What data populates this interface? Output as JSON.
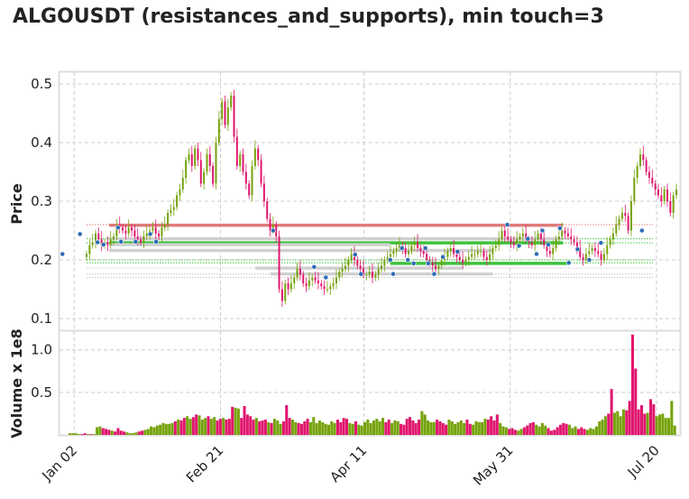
{
  "title": "ALGOUSDT (resistances_and_supports), min touch=3",
  "chart_data": {
    "type": "candlestick",
    "title": "ALGOUSDT (resistances_and_supports), min touch=3",
    "price_panel": {
      "ylabel": "Price",
      "ylim": [
        0.08,
        0.52
      ],
      "yticks": [
        0.1,
        0.2,
        0.3,
        0.4,
        0.5
      ],
      "ytick_labels": [
        "0.1",
        "0.2",
        "0.3",
        "0.4",
        "0.5"
      ],
      "grid": true
    },
    "volume_panel": {
      "ylabel": "Volume x 1e8",
      "ylim": [
        0,
        1.22
      ],
      "yticks": [
        0.5,
        1.0
      ],
      "ytick_labels": [
        "0.5",
        "1.0"
      ],
      "grid": true
    },
    "x_axis": {
      "start_date": "2021-12-28",
      "end_date": "2022-07-28",
      "tick_dates": [
        "2022-01-02",
        "2022-02-21",
        "2022-04-11",
        "2022-05-31",
        "2022-07-20"
      ],
      "tick_labels": [
        "Jan 02",
        "Feb 21",
        "Apr 11",
        "May 31",
        "Jul 20"
      ]
    },
    "price_series": [
      0.21,
      0.225,
      0.23,
      0.245,
      0.235,
      0.225,
      0.23,
      0.225,
      0.235,
      0.24,
      0.26,
      0.255,
      0.25,
      0.245,
      0.255,
      0.25,
      0.24,
      0.235,
      0.23,
      0.24,
      0.245,
      0.25,
      0.255,
      0.245,
      0.24,
      0.255,
      0.26,
      0.28,
      0.285,
      0.29,
      0.31,
      0.32,
      0.34,
      0.37,
      0.38,
      0.36,
      0.39,
      0.37,
      0.33,
      0.35,
      0.38,
      0.36,
      0.33,
      0.4,
      0.44,
      0.47,
      0.43,
      0.46,
      0.48,
      0.41,
      0.36,
      0.38,
      0.35,
      0.33,
      0.31,
      0.36,
      0.39,
      0.37,
      0.33,
      0.3,
      0.27,
      0.25,
      0.26,
      0.24,
      0.15,
      0.13,
      0.16,
      0.15,
      0.16,
      0.17,
      0.185,
      0.175,
      0.16,
      0.155,
      0.165,
      0.17,
      0.165,
      0.16,
      0.155,
      0.15,
      0.15,
      0.155,
      0.16,
      0.17,
      0.18,
      0.185,
      0.19,
      0.2,
      0.21,
      0.2,
      0.19,
      0.185,
      0.175,
      0.175,
      0.18,
      0.17,
      0.175,
      0.185,
      0.19,
      0.2,
      0.205,
      0.21,
      0.215,
      0.22,
      0.225,
      0.22,
      0.21,
      0.215,
      0.225,
      0.23,
      0.22,
      0.215,
      0.21,
      0.2,
      0.195,
      0.19,
      0.185,
      0.19,
      0.2,
      0.205,
      0.215,
      0.22,
      0.21,
      0.205,
      0.2,
      0.195,
      0.2,
      0.205,
      0.21,
      0.21,
      0.215,
      0.215,
      0.205,
      0.2,
      0.21,
      0.22,
      0.225,
      0.235,
      0.25,
      0.24,
      0.235,
      0.23,
      0.225,
      0.235,
      0.24,
      0.245,
      0.235,
      0.23,
      0.225,
      0.235,
      0.245,
      0.235,
      0.225,
      0.215,
      0.21,
      0.22,
      0.235,
      0.24,
      0.25,
      0.245,
      0.24,
      0.235,
      0.23,
      0.22,
      0.205,
      0.2,
      0.21,
      0.215,
      0.22,
      0.215,
      0.21,
      0.2,
      0.21,
      0.225,
      0.235,
      0.245,
      0.26,
      0.27,
      0.28,
      0.275,
      0.25,
      0.3,
      0.34,
      0.36,
      0.38,
      0.37,
      0.35,
      0.34,
      0.33,
      0.32,
      0.31,
      0.3,
      0.32,
      0.3,
      0.28,
      0.31,
      0.32
    ],
    "volume_series": [
      0.02,
      0.02,
      0.02,
      0.01,
      0.01,
      0.02,
      0.01,
      0.01,
      0.01,
      0.09,
      0.1,
      0.08,
      0.07,
      0.06,
      0.05,
      0.04,
      0.08,
      0.05,
      0.04,
      0.03,
      0.02,
      0.02,
      0.03,
      0.04,
      0.05,
      0.06,
      0.07,
      0.1,
      0.09,
      0.11,
      0.12,
      0.14,
      0.13,
      0.13,
      0.14,
      0.16,
      0.18,
      0.17,
      0.2,
      0.22,
      0.19,
      0.21,
      0.24,
      0.23,
      0.18,
      0.2,
      0.22,
      0.19,
      0.21,
      0.17,
      0.19,
      0.2,
      0.18,
      0.19,
      0.33,
      0.32,
      0.31,
      0.2,
      0.34,
      0.24,
      0.22,
      0.18,
      0.2,
      0.16,
      0.17,
      0.18,
      0.15,
      0.14,
      0.19,
      0.17,
      0.13,
      0.16,
      0.35,
      0.2,
      0.18,
      0.15,
      0.14,
      0.13,
      0.16,
      0.19,
      0.15,
      0.21,
      0.14,
      0.17,
      0.15,
      0.13,
      0.12,
      0.16,
      0.14,
      0.18,
      0.15,
      0.2,
      0.19,
      0.14,
      0.13,
      0.16,
      0.12,
      0.11,
      0.15,
      0.18,
      0.14,
      0.17,
      0.19,
      0.16,
      0.2,
      0.15,
      0.18,
      0.14,
      0.17,
      0.16,
      0.13,
      0.12,
      0.19,
      0.21,
      0.17,
      0.14,
      0.18,
      0.28,
      0.24,
      0.17,
      0.15,
      0.15,
      0.18,
      0.16,
      0.14,
      0.12,
      0.18,
      0.16,
      0.13,
      0.15,
      0.17,
      0.14,
      0.18,
      0.13,
      0.12,
      0.16,
      0.15,
      0.15,
      0.19,
      0.18,
      0.22,
      0.17,
      0.24,
      0.14,
      0.1,
      0.09,
      0.07,
      0.08,
      0.06,
      0.05,
      0.07,
      0.09,
      0.11,
      0.14,
      0.15,
      0.12,
      0.1,
      0.14,
      0.11,
      0.08,
      0.05,
      0.06,
      0.09,
      0.12,
      0.14,
      0.13,
      0.12,
      0.08,
      0.1,
      0.07,
      0.09,
      0.07,
      0.06,
      0.08,
      0.07,
      0.1,
      0.16,
      0.18,
      0.22,
      0.25,
      0.54,
      0.26,
      0.28,
      0.22,
      0.3,
      0.29,
      0.4,
      1.18,
      0.78,
      0.3,
      0.35,
      0.25,
      0.26,
      0.42,
      0.36,
      0.22,
      0.24,
      0.25,
      0.2,
      0.2,
      0.4,
      0.11
    ],
    "resistance_lines": [
      {
        "start": "2022-01-14",
        "end": "2022-06-18",
        "price": 0.259,
        "color": "#e07a7a"
      },
      {
        "start": "2022-01-14",
        "end": "2022-06-18",
        "price": 0.236,
        "color": "#d0d0d0"
      },
      {
        "start": "2022-01-14",
        "end": "2022-06-18",
        "price": 0.229,
        "color": "#3cc23c"
      },
      {
        "start": "2022-01-14",
        "end": "2022-04-20",
        "price": 0.226,
        "color": "#d0d0d0"
      },
      {
        "start": "2022-01-14",
        "end": "2022-05-25",
        "price": 0.216,
        "color": "#d0d0d0"
      },
      {
        "start": "2022-03-05",
        "end": "2022-05-15",
        "price": 0.186,
        "color": "#d0d0d0"
      },
      {
        "start": "2022-03-10",
        "end": "2022-05-25",
        "price": 0.176,
        "color": "#d0d0d0"
      },
      {
        "start": "2022-04-20",
        "end": "2022-06-20",
        "price": 0.194,
        "color": "#3cc23c"
      }
    ],
    "dotted_levels": [
      {
        "price": 0.26,
        "color": "#e07a7a"
      },
      {
        "price": 0.236,
        "color": "#3cc23c"
      },
      {
        "price": 0.229,
        "color": "#3cc23c"
      },
      {
        "price": 0.2,
        "color": "#3cc23c"
      },
      {
        "price": 0.195,
        "color": "#3cc23c"
      },
      {
        "price": 0.186,
        "color": "#cccccc"
      },
      {
        "price": 0.176,
        "color": "#cccccc"
      },
      {
        "price": 0.17,
        "color": "#cccccc"
      }
    ],
    "touch_points": [
      {
        "date": "2021-12-29",
        "price": 0.21
      },
      {
        "date": "2022-01-04",
        "price": 0.244
      },
      {
        "date": "2022-01-10",
        "price": 0.23
      },
      {
        "date": "2022-01-12",
        "price": 0.226
      },
      {
        "date": "2022-01-17",
        "price": 0.255
      },
      {
        "date": "2022-01-18",
        "price": 0.231
      },
      {
        "date": "2022-01-23",
        "price": 0.231
      },
      {
        "date": "2022-01-28",
        "price": 0.244
      },
      {
        "date": "2022-01-30",
        "price": 0.231
      },
      {
        "date": "2022-03-11",
        "price": 0.25
      },
      {
        "date": "2022-03-25",
        "price": 0.188
      },
      {
        "date": "2022-03-29",
        "price": 0.17
      },
      {
        "date": "2022-04-08",
        "price": 0.209
      },
      {
        "date": "2022-04-10",
        "price": 0.176
      },
      {
        "date": "2022-04-20",
        "price": 0.2
      },
      {
        "date": "2022-04-21",
        "price": 0.176
      },
      {
        "date": "2022-04-24",
        "price": 0.22
      },
      {
        "date": "2022-04-26",
        "price": 0.2
      },
      {
        "date": "2022-04-28",
        "price": 0.194
      },
      {
        "date": "2022-05-02",
        "price": 0.22
      },
      {
        "date": "2022-05-03",
        "price": 0.194
      },
      {
        "date": "2022-05-05",
        "price": 0.176
      },
      {
        "date": "2022-05-08",
        "price": 0.205
      },
      {
        "date": "2022-05-13",
        "price": 0.214
      },
      {
        "date": "2022-05-30",
        "price": 0.26
      },
      {
        "date": "2022-06-03",
        "price": 0.224
      },
      {
        "date": "2022-06-06",
        "price": 0.236
      },
      {
        "date": "2022-06-09",
        "price": 0.21
      },
      {
        "date": "2022-06-11",
        "price": 0.25
      },
      {
        "date": "2022-06-13",
        "price": 0.226
      },
      {
        "date": "2022-06-17",
        "price": 0.254
      },
      {
        "date": "2022-06-20",
        "price": 0.195
      },
      {
        "date": "2022-06-23",
        "price": 0.218
      },
      {
        "date": "2022-06-27",
        "price": 0.2
      },
      {
        "date": "2022-07-01",
        "price": 0.229
      },
      {
        "date": "2022-07-15",
        "price": 0.25
      }
    ],
    "colors": {
      "up": "#76a30d",
      "down": "#e0166e",
      "touch": "#2f6db5",
      "grid": "#cccccc",
      "axes": "#dddddd"
    }
  }
}
